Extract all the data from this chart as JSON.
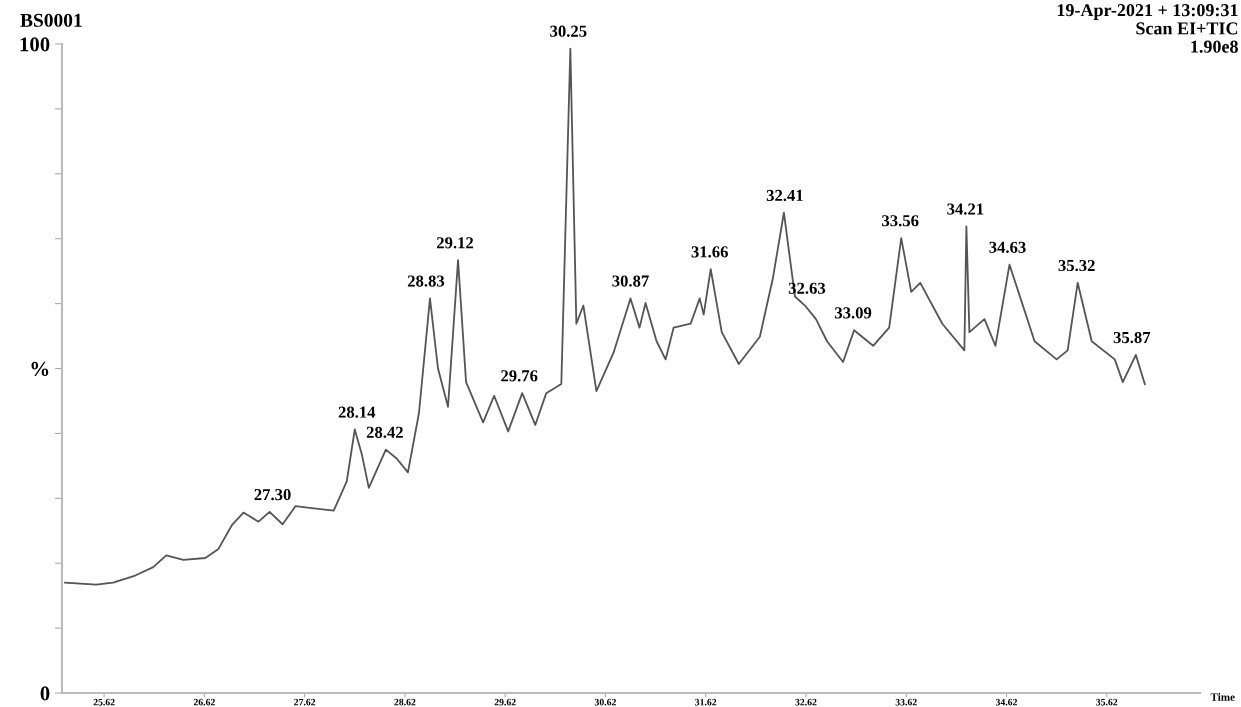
{
  "chart_data": {
    "type": "line",
    "title": "BS0001",
    "xlabel": "Time",
    "x": [
      25.23,
      25.54,
      25.71,
      25.93,
      26.11,
      26.24,
      26.41,
      26.63,
      26.76,
      26.9,
      27.01,
      27.16,
      27.27,
      27.4,
      27.53,
      27.69,
      27.91,
      28.04,
      28.12,
      28.19,
      28.26,
      28.43,
      28.54,
      28.65,
      28.76,
      28.87,
      28.95,
      29.05,
      29.15,
      29.23,
      29.4,
      29.51,
      29.65,
      29.79,
      29.92,
      30.03,
      30.18,
      30.27,
      30.33,
      30.4,
      30.53,
      30.7,
      30.87,
      30.96,
      31.02,
      31.13,
      31.22,
      31.3,
      31.47,
      31.56,
      31.6,
      31.67,
      31.78,
      31.95,
      32.16,
      32.29,
      32.4,
      32.51,
      32.61,
      32.72,
      32.83,
      32.99,
      33.1,
      33.29,
      33.45,
      33.57,
      33.67,
      33.76,
      33.98,
      34.2,
      34.22,
      34.25,
      34.4,
      34.51,
      34.65,
      34.9,
      35.12,
      35.23,
      35.33,
      35.47,
      35.7,
      35.78,
      35.91,
      36.0
    ],
    "series": [
      {
        "color": "#555555",
        "values": [
          17.0,
          16.7,
          17.0,
          18.1,
          19.4,
          21.2,
          20.5,
          20.8,
          22.2,
          26.0,
          27.8,
          26.4,
          27.9,
          26.0,
          28.8,
          28.5,
          28.1,
          32.6,
          40.6,
          36.8,
          31.6,
          37.5,
          36.1,
          34.0,
          43.1,
          60.8,
          50.0,
          44.1,
          66.7,
          47.9,
          41.7,
          45.8,
          40.3,
          46.2,
          41.3,
          46.2,
          47.6,
          99.3,
          56.9,
          59.7,
          46.5,
          52.4,
          60.8,
          56.3,
          60.1,
          54.2,
          51.4,
          56.3,
          56.9,
          60.8,
          58.3,
          65.3,
          55.6,
          50.7,
          54.9,
          63.9,
          74.0,
          61.1,
          59.7,
          57.6,
          54.2,
          51.0,
          55.9,
          53.5,
          56.3,
          70.1,
          61.8,
          63.2,
          56.9,
          52.8,
          71.9,
          55.6,
          57.6,
          53.5,
          66.0,
          54.2,
          51.4,
          52.8,
          63.2,
          54.2,
          51.4,
          47.9,
          52.1,
          47.6
        ]
      }
    ],
    "xlim": [
      25.2,
      36.55
    ],
    "xticks": [
      25.62,
      26.62,
      27.62,
      28.62,
      29.62,
      30.62,
      31.62,
      32.62,
      33.62,
      34.62,
      35.62
    ],
    "ylim": [
      0,
      100
    ],
    "yticks": [
      {
        "value": 0,
        "label": "0"
      },
      {
        "value": 10,
        "label": null
      },
      {
        "value": 20,
        "label": null
      },
      {
        "value": 30,
        "label": null
      },
      {
        "value": 40,
        "label": null
      },
      {
        "value": 50,
        "label": "%"
      },
      {
        "value": 60,
        "label": null
      },
      {
        "value": 70,
        "label": null
      },
      {
        "value": 80,
        "label": null
      },
      {
        "value": 90,
        "label": null
      },
      {
        "value": 100,
        "label": "100"
      }
    ],
    "grid": false,
    "legend": false,
    "marker": "none",
    "line_style": "solid",
    "annotations": [
      "19-Apr-2021 + 13:09:31\nScan EI+TIC\n1.90e8",
      {
        "text": "27.30",
        "x": 27.3,
        "y": 27.9
      },
      {
        "text": "28.14",
        "x": 28.14,
        "y": 40.6
      },
      {
        "text": "28.42",
        "x": 28.42,
        "y": 37.5
      },
      {
        "text": "28.83",
        "x": 28.83,
        "y": 60.8
      },
      {
        "text": "29.12",
        "x": 29.12,
        "y": 66.7
      },
      {
        "text": "29.76",
        "x": 29.76,
        "y": 46.2
      },
      {
        "text": "30.25",
        "x": 30.25,
        "y": 99.3
      },
      {
        "text": "30.87",
        "x": 30.87,
        "y": 60.8
      },
      {
        "text": "31.66",
        "x": 31.66,
        "y": 65.3
      },
      {
        "text": "32.41",
        "x": 32.41,
        "y": 74.0
      },
      {
        "text": "32.63",
        "x": 32.63,
        "y": 59.7
      },
      {
        "text": "33.09",
        "x": 33.09,
        "y": 55.9
      },
      {
        "text": "33.56",
        "x": 33.56,
        "y": 70.1
      },
      {
        "text": "34.21",
        "x": 34.21,
        "y": 71.9
      },
      {
        "text": "34.63",
        "x": 34.63,
        "y": 66.0
      },
      {
        "text": "35.32",
        "x": 35.32,
        "y": 63.2
      },
      {
        "text": "35.87",
        "x": 35.87,
        "y": 52.1
      }
    ]
  }
}
